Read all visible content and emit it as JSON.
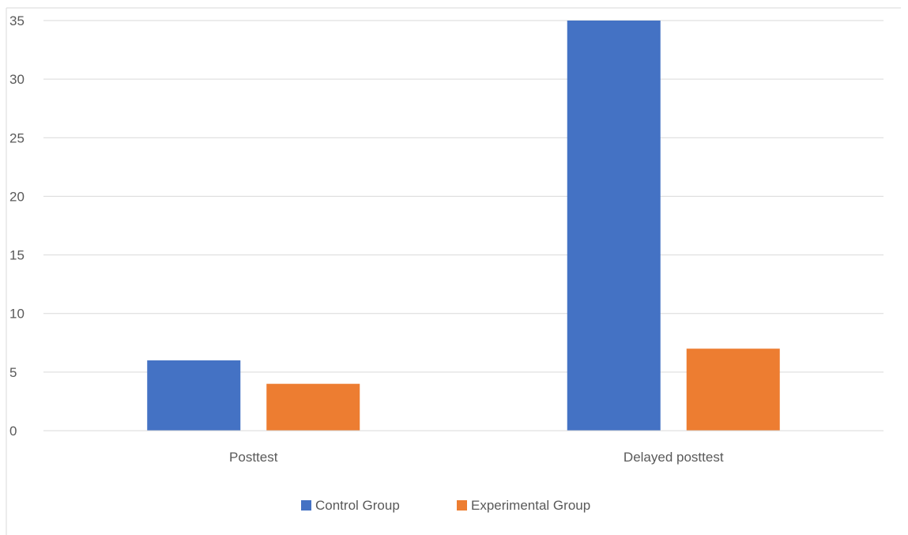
{
  "chart_data": {
    "type": "bar",
    "categories": [
      "Posttest",
      "Delayed posttest"
    ],
    "series": [
      {
        "name": "Control Group",
        "values": [
          6,
          35
        ],
        "color": "#4472C4"
      },
      {
        "name": "Experimental Group",
        "values": [
          4,
          7
        ],
        "color": "#ED7D31"
      }
    ],
    "ylim": [
      0,
      35
    ],
    "yticks": [
      0,
      5,
      10,
      15,
      20,
      25,
      30,
      35
    ],
    "grid": true,
    "legend_position": "bottom"
  }
}
